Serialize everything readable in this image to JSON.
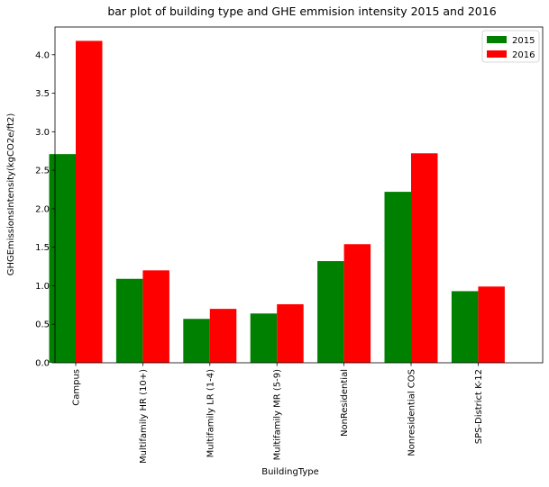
{
  "chart_data": {
    "type": "bar",
    "title": "bar plot of building type and GHE emmision intensity 2015 and 2016",
    "xlabel": "BuildingType",
    "ylabel": "GHGEmissionsIntensity(kgCO2e/ft2)",
    "categories": [
      "Campus",
      "Multifamily HR (10+)",
      "Multifamily LR (1-4)",
      "Multifamily MR (5-9)",
      "NonResidential",
      "Nonresidential COS",
      "SPS-District K-12"
    ],
    "series": [
      {
        "name": "2015",
        "color": "#008000",
        "values": [
          2.71,
          1.09,
          0.57,
          0.64,
          1.32,
          2.22,
          0.93
        ]
      },
      {
        "name": "2016",
        "color": "#ff0000",
        "values": [
          4.18,
          1.2,
          0.7,
          0.76,
          1.54,
          2.72,
          0.99
        ]
      }
    ],
    "ylim": [
      0,
      4.36
    ],
    "yticks": [
      "0.0",
      "0.5",
      "1.0",
      "1.5",
      "2.0",
      "2.5",
      "3.0",
      "3.5",
      "4.0"
    ],
    "grid": false,
    "legend_position": "top-right"
  }
}
